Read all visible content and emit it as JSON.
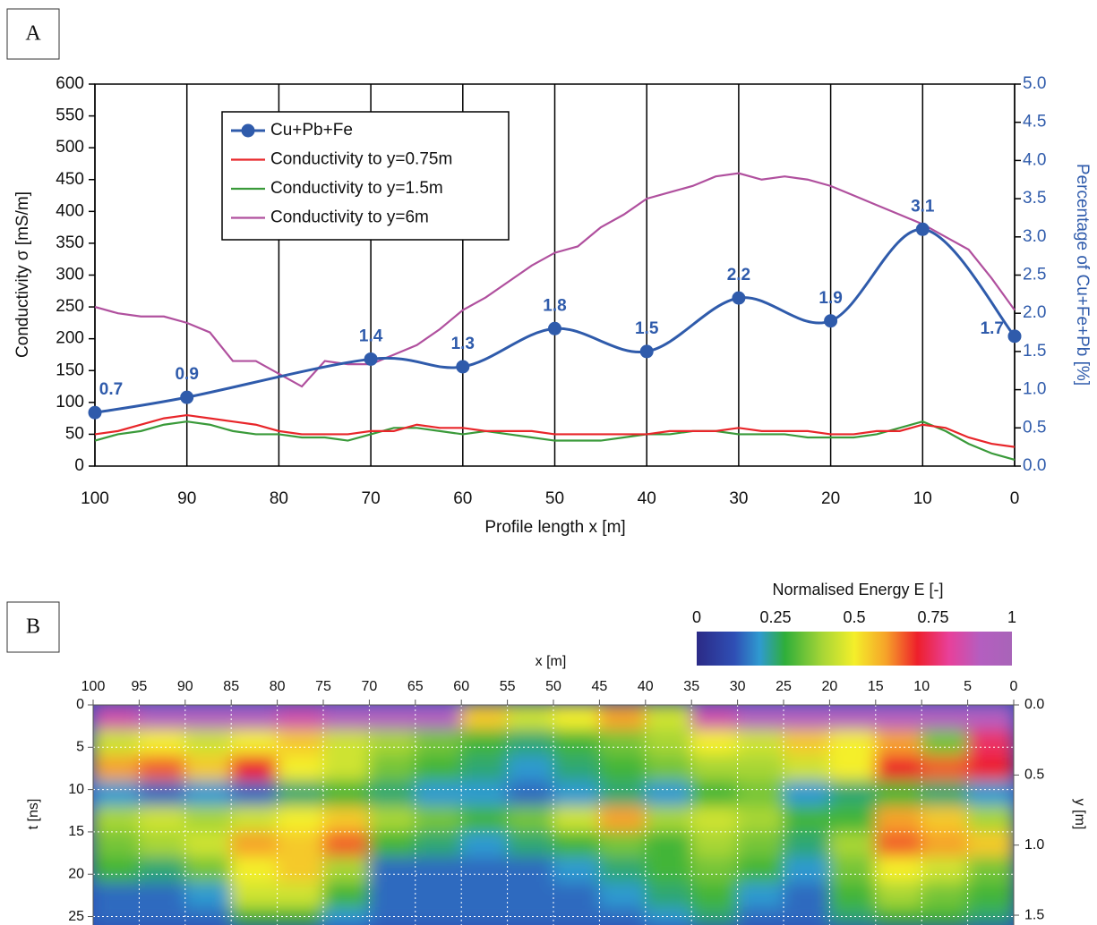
{
  "chart_data": [
    {
      "type": "line",
      "panel": "A",
      "ylabel": "Conductivity  σ [mS/m]",
      "y2label": "Percentage of Cu+Fe+Pb [%]",
      "xlabel": "Profile length  x [m]",
      "xlim": [
        100,
        0
      ],
      "xticks": [
        100,
        90,
        80,
        70,
        60,
        50,
        40,
        30,
        20,
        10,
        0
      ],
      "ylim": [
        0,
        600
      ],
      "yticks": [
        0,
        50,
        100,
        150,
        200,
        250,
        300,
        350,
        400,
        450,
        500,
        550,
        600
      ],
      "y2lim": [
        0,
        5
      ],
      "y2ticks": [
        {
          "value": 0,
          "label": "0.0"
        },
        {
          "value": 0.5,
          "label": "0.5"
        },
        {
          "value": 1,
          "label": "1.0"
        },
        {
          "value": 1.5,
          "label": "1.5"
        },
        {
          "value": 2,
          "label": "2.0"
        },
        {
          "value": 2.5,
          "label": "2.5"
        },
        {
          "value": 3,
          "label": "3.0"
        },
        {
          "value": 3.5,
          "label": "3.5"
        },
        {
          "value": 4,
          "label": "4.0"
        },
        {
          "value": 4.5,
          "label": "4.5"
        },
        {
          "value": 5,
          "label": "5.0"
        }
      ],
      "grid": true,
      "legend": "upper left",
      "x": [
        100,
        97.5,
        95,
        92.5,
        90,
        87.5,
        85,
        82.5,
        80,
        77.5,
        75,
        72.5,
        70,
        67.5,
        65,
        62.5,
        60,
        57.5,
        55,
        52.5,
        50,
        47.5,
        45,
        42.5,
        40,
        37.5,
        35,
        32.5,
        30,
        27.5,
        25,
        22.5,
        20,
        17.5,
        15,
        12.5,
        10,
        7.5,
        5,
        2.5,
        0
      ],
      "series": [
        {
          "name": "Cu+Pb+Fe",
          "color": "#2f5bab",
          "axis": "y2",
          "markers": true,
          "data_labels": true,
          "x": [
            100,
            90,
            70,
            60,
            50,
            40,
            30,
            20,
            10,
            0
          ],
          "values": [
            0.7,
            0.9,
            1.4,
            1.3,
            1.8,
            1.5,
            2.2,
            1.9,
            3.1,
            1.7
          ]
        },
        {
          "name": "Conductivity to y=0.75m",
          "color": "#e8262a",
          "values": [
            50,
            55,
            65,
            75,
            80,
            75,
            70,
            65,
            55,
            50,
            50,
            50,
            55,
            55,
            65,
            60,
            60,
            55,
            55,
            55,
            50,
            50,
            50,
            50,
            50,
            55,
            55,
            55,
            60,
            55,
            55,
            55,
            50,
            50,
            55,
            55,
            65,
            60,
            45,
            35,
            30
          ]
        },
        {
          "name": "Conductivity to y=1.5m",
          "color": "#3a9a3a",
          "values": [
            40,
            50,
            55,
            65,
            70,
            65,
            55,
            50,
            50,
            45,
            45,
            40,
            50,
            60,
            60,
            55,
            50,
            55,
            50,
            45,
            40,
            40,
            40,
            45,
            50,
            50,
            55,
            55,
            50,
            50,
            50,
            45,
            45,
            45,
            50,
            60,
            70,
            55,
            35,
            20,
            10
          ]
        },
        {
          "name": "Conductivity to y=6m",
          "color": "#b0509e",
          "values": [
            250,
            240,
            235,
            235,
            225,
            210,
            165,
            165,
            145,
            125,
            165,
            160,
            160,
            175,
            190,
            215,
            245,
            265,
            290,
            315,
            335,
            345,
            375,
            395,
            420,
            430,
            440,
            455,
            460,
            450,
            455,
            450,
            440,
            425,
            410,
            395,
            380,
            360,
            340,
            295,
            245
          ]
        }
      ]
    },
    {
      "type": "heatmap",
      "panel": "B",
      "xlabel": "x [m]",
      "ylabel": "t [ns]",
      "y2label": "y [m]",
      "colorbar_title": "Normalised Energy  E [-]",
      "xlim": [
        100,
        0
      ],
      "xticks": [
        100,
        95,
        90,
        85,
        80,
        75,
        70,
        65,
        60,
        55,
        50,
        45,
        40,
        35,
        30,
        25,
        20,
        15,
        10,
        5,
        0
      ],
      "ylim": [
        0,
        26
      ],
      "yticks": [
        0,
        5,
        10,
        15,
        20,
        25
      ],
      "y2lim": [
        0,
        1.57
      ],
      "y2ticks": [
        {
          "value": 0,
          "label": "0.0"
        },
        {
          "value": 0.5,
          "label": "0.5"
        },
        {
          "value": 1,
          "label": "1.0"
        },
        {
          "value": 1.5,
          "label": "1.5"
        }
      ],
      "grid": true,
      "zlim": [
        0,
        1
      ],
      "colorbar_ticks": [
        0,
        0.25,
        0.5,
        0.75,
        1
      ],
      "colorscale": [
        [
          0,
          "#2b2a86"
        ],
        [
          0.12,
          "#2f4fb5"
        ],
        [
          0.2,
          "#2f9ad0"
        ],
        [
          0.28,
          "#2fae3a"
        ],
        [
          0.4,
          "#a8d636"
        ],
        [
          0.5,
          "#f4ef2a"
        ],
        [
          0.6,
          "#f6a329"
        ],
        [
          0.7,
          "#ee1f2b"
        ],
        [
          0.8,
          "#e8409a"
        ],
        [
          0.9,
          "#b45ec0"
        ],
        [
          1,
          "#a864b8"
        ]
      ],
      "x_bins": [
        100,
        95,
        90,
        85,
        80,
        75,
        70,
        65,
        60,
        55,
        50,
        45,
        40,
        35,
        30,
        25,
        20,
        15,
        10,
        5,
        0
      ],
      "t_bins": [
        0,
        3,
        6,
        9,
        12,
        15,
        18,
        21,
        24,
        26
      ],
      "z": [
        [
          0.85,
          0.9,
          0.9,
          0.9,
          0.85,
          0.9,
          0.9,
          0.9,
          0.55,
          0.45,
          0.5,
          0.6,
          0.45,
          0.85,
          0.9,
          0.9,
          0.9,
          0.9,
          0.9,
          0.9
        ],
        [
          0.45,
          0.5,
          0.45,
          0.5,
          0.55,
          0.45,
          0.4,
          0.35,
          0.3,
          0.25,
          0.3,
          0.35,
          0.4,
          0.5,
          0.45,
          0.55,
          0.5,
          0.6,
          0.35,
          0.75
        ],
        [
          0.6,
          0.65,
          0.55,
          0.7,
          0.5,
          0.45,
          0.35,
          0.3,
          0.25,
          0.2,
          0.25,
          0.3,
          0.35,
          0.4,
          0.4,
          0.45,
          0.5,
          0.7,
          0.65,
          0.7
        ],
        [
          0.2,
          0.15,
          0.2,
          0.15,
          0.25,
          0.3,
          0.25,
          0.2,
          0.2,
          0.15,
          0.2,
          0.25,
          0.2,
          0.3,
          0.35,
          0.2,
          0.25,
          0.3,
          0.25,
          0.2
        ],
        [
          0.4,
          0.45,
          0.4,
          0.45,
          0.5,
          0.55,
          0.4,
          0.35,
          0.3,
          0.35,
          0.45,
          0.6,
          0.4,
          0.45,
          0.4,
          0.3,
          0.3,
          0.6,
          0.55,
          0.4
        ],
        [
          0.35,
          0.4,
          0.45,
          0.6,
          0.55,
          0.65,
          0.3,
          0.25,
          0.2,
          0.25,
          0.3,
          0.35,
          0.3,
          0.4,
          0.35,
          0.25,
          0.4,
          0.65,
          0.6,
          0.55
        ],
        [
          0.3,
          0.25,
          0.35,
          0.5,
          0.55,
          0.4,
          0.15,
          0.15,
          0.15,
          0.15,
          0.2,
          0.25,
          0.3,
          0.35,
          0.3,
          0.2,
          0.35,
          0.5,
          0.45,
          0.35
        ],
        [
          0.15,
          0.15,
          0.2,
          0.45,
          0.45,
          0.3,
          0.15,
          0.15,
          0.15,
          0.15,
          0.15,
          0.2,
          0.25,
          0.3,
          0.2,
          0.15,
          0.3,
          0.4,
          0.35,
          0.3
        ],
        [
          0.15,
          0.15,
          0.15,
          0.3,
          0.3,
          0.2,
          0.15,
          0.15,
          0.15,
          0.15,
          0.15,
          0.15,
          0.2,
          0.25,
          0.15,
          0.15,
          0.25,
          0.3,
          0.3,
          0.25
        ]
      ]
    }
  ]
}
